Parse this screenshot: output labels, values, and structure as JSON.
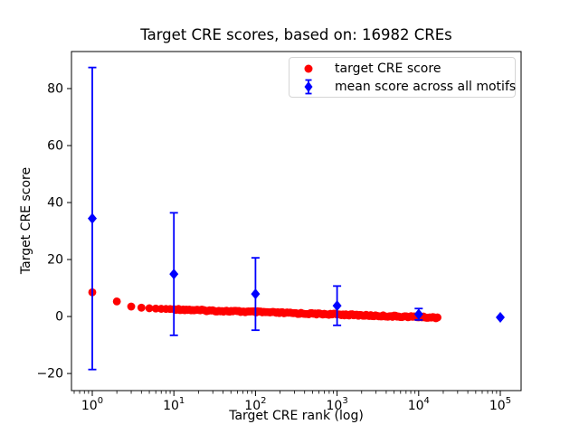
{
  "figure": {
    "background": "#ffffff",
    "border_color": "#000000"
  },
  "chart_data": {
    "type": "scatter",
    "title": "Target CRE scores, based on: 16982 CREs",
    "xlabel": "Target CRE rank (log)",
    "ylabel": "Target CRE score",
    "n_cres": 16982,
    "x_scale": "log",
    "xlim_log10": [
      -0.255,
      5.255
    ],
    "ylim": [
      -26.0,
      93.0
    ],
    "x_tick_exponents": [
      0,
      1,
      2,
      3,
      4,
      5
    ],
    "x_tick_base": "10",
    "y_ticks": [
      -20,
      0,
      20,
      40,
      60,
      80
    ],
    "y_tick_labels": [
      "−20",
      "0",
      "20",
      "40",
      "60",
      "80"
    ],
    "grid": false,
    "legend_position": "upper right",
    "series": [
      {
        "name": "target CRE score",
        "type": "scatter",
        "marker": "circle",
        "color": "#ff0000",
        "max_rank": 16982,
        "curve_anchors": [
          [
            1,
            8.5
          ],
          [
            2,
            5.3
          ],
          [
            3,
            3.5
          ],
          [
            4,
            3.1
          ],
          [
            5,
            2.9
          ],
          [
            7,
            2.7
          ],
          [
            10,
            2.6
          ],
          [
            20,
            2.2
          ],
          [
            50,
            1.85
          ],
          [
            100,
            1.6
          ],
          [
            300,
            1.15
          ],
          [
            1000,
            0.75
          ],
          [
            3000,
            0.25
          ],
          [
            10000,
            -0.15
          ],
          [
            16982,
            -0.4
          ]
        ]
      },
      {
        "name": "mean score across all motifs",
        "type": "errorbar",
        "marker": "diamond",
        "color": "#0000ff",
        "points": [
          {
            "rank": 1,
            "mean": 34.4,
            "err": 53.0
          },
          {
            "rank": 10,
            "mean": 14.9,
            "err": 21.5
          },
          {
            "rank": 100,
            "mean": 7.9,
            "err": 12.7
          },
          {
            "rank": 1000,
            "mean": 3.8,
            "err": 6.9
          },
          {
            "rank": 10000,
            "mean": 0.8,
            "err": 2.0
          },
          {
            "rank": 100000,
            "mean": -0.3,
            "err": 0.0
          }
        ]
      }
    ]
  }
}
